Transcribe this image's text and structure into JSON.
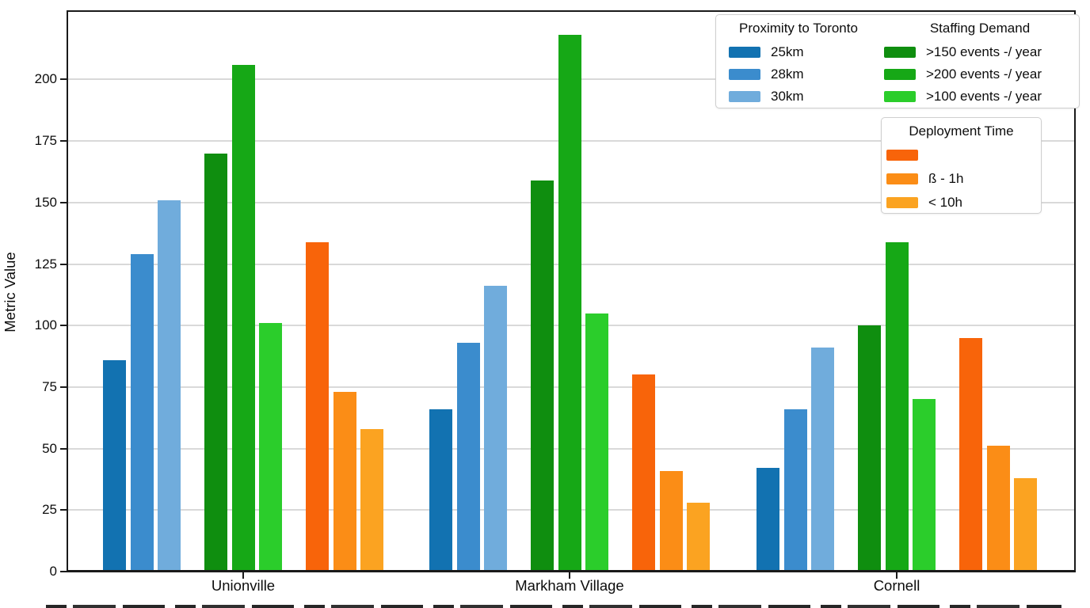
{
  "chart_data": {
    "type": "bar",
    "title": "",
    "xlabel": "",
    "ylabel": "Metric Value",
    "ylim": [
      0,
      228
    ],
    "yticks": [
      0,
      25,
      50,
      75,
      100,
      125,
      150,
      175,
      200
    ],
    "grid": true,
    "legend_position": "top-right",
    "categories": [
      "Unionville",
      "Markham Village",
      "Cornell"
    ],
    "series": [
      {
        "name": "25km",
        "legend_group": "Proximity to Toronto",
        "color": "#1272b1",
        "values": [
          86,
          66,
          42
        ]
      },
      {
        "name": "28km",
        "legend_group": "Proximity to Toronto",
        "color": "#3b8ccd",
        "values": [
          129,
          93,
          66
        ]
      },
      {
        "name": "30km",
        "legend_group": "Proximity to Toronto",
        "color": "#70acdc",
        "values": [
          151,
          116,
          91
        ]
      },
      {
        "name": ">150 events -/ year",
        "legend_group": "Staffing Demand",
        "color": "#0f8e0f",
        "values": [
          170,
          159,
          100
        ]
      },
      {
        "name": ">200 events -/ year",
        "legend_group": "Staffing Demand",
        "color": "#16a816",
        "values": [
          206,
          218,
          134
        ]
      },
      {
        "name": ">100 events -/ year",
        "legend_group": "Staffing Demand",
        "color": "#2bcd2b",
        "values": [
          101,
          105,
          70
        ]
      },
      {
        "name": "",
        "legend_group": "Deployment Time",
        "color": "#f8640a",
        "values": [
          134,
          80,
          95
        ]
      },
      {
        "name": "ß - 1h",
        "legend_group": "Deployment Time",
        "color": "#fb8d16",
        "values": [
          73,
          41,
          51
        ]
      },
      {
        "name": "< 10h",
        "legend_group": "Deployment Time",
        "color": "#fba321",
        "values": [
          58,
          28,
          38
        ]
      }
    ],
    "legend": {
      "box1_col1_title": "Proximity to Toronto",
      "box1_col2_title": "Staffing Demand",
      "box2_title": "Deployment Time"
    }
  }
}
